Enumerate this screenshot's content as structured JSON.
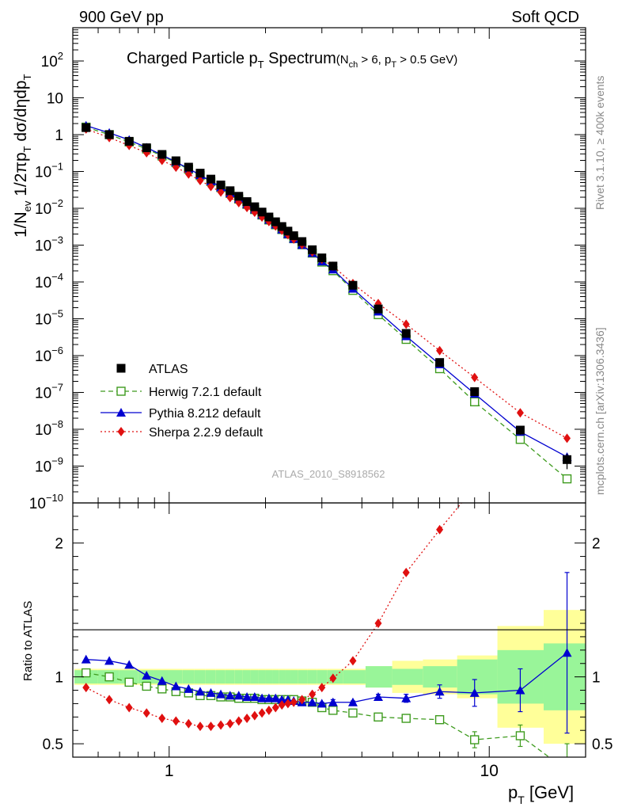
{
  "header": {
    "left": "900 GeV pp",
    "right": "Soft QCD"
  },
  "side": {
    "rivet": "Rivet 3.1.10, ≥ 400k events",
    "mcplots": "mcplots.cern.ch [arXiv:1306.3436]"
  },
  "chart_data": {
    "type": "line",
    "title": {
      "main": "Charged Particle p",
      "main_sub": "T",
      "main_tail": " Spectrum",
      "cond_a": "(N",
      "cond_a_sub": "ch",
      "cond_b": " > 6, p",
      "cond_b_sub": "T",
      "cond_c": " > 0.5 GeV)"
    },
    "analysis_tag": "ATLAS_2010_S8918562",
    "ylabel": "1/N_ev 1/2πp_T dσ/dηdp_T",
    "ylabel_parts": [
      "1/N",
      "ev",
      " 1/2πp",
      "T",
      " dσ/dηdp",
      "T"
    ],
    "ratio_ylabel": "Ratio to ATLAS",
    "xlabel": "p_T [GeV]",
    "xlabel_parts": [
      "p",
      "T",
      "  [GeV]"
    ],
    "xscale": "log",
    "xlim": [
      0.5,
      20
    ],
    "ylim": [
      1e-10,
      800
    ],
    "ratio_ylim": [
      0.4,
      2.3
    ],
    "x_ticks": [
      {
        "v": 1,
        "label": "1"
      },
      {
        "v": 10,
        "label": "10"
      }
    ],
    "y_ticks": [
      {
        "e": 2,
        "base": "10",
        "exp": "2"
      },
      {
        "e": 1,
        "base": "10",
        "exp": ""
      },
      {
        "e": 0,
        "base": "1",
        "exp": ""
      },
      {
        "e": -1,
        "base": "10",
        "exp": "−1"
      },
      {
        "e": -2,
        "base": "10",
        "exp": "−2"
      },
      {
        "e": -3,
        "base": "10",
        "exp": "−3"
      },
      {
        "e": -4,
        "base": "10",
        "exp": "−4"
      },
      {
        "e": -5,
        "base": "10",
        "exp": "−5"
      },
      {
        "e": -6,
        "base": "10",
        "exp": "−6"
      },
      {
        "e": -7,
        "base": "10",
        "exp": "−7"
      },
      {
        "e": -8,
        "base": "10",
        "exp": "−8"
      },
      {
        "e": -9,
        "base": "10",
        "exp": "−9"
      },
      {
        "e": -10,
        "base": "10",
        "exp": "−10"
      }
    ],
    "ratio_ticks": [
      {
        "v": 0.5,
        "label": "0.5"
      },
      {
        "v": 1,
        "label": "1"
      },
      {
        "v": 2,
        "label": "2"
      }
    ],
    "x": [
      0.55,
      0.65,
      0.75,
      0.85,
      0.95,
      1.05,
      1.15,
      1.25,
      1.35,
      1.45,
      1.55,
      1.65,
      1.75,
      1.85,
      1.95,
      2.05,
      2.15,
      2.25,
      2.35,
      2.45,
      2.6,
      2.8,
      3.0,
      3.25,
      3.75,
      4.5,
      5.5,
      7.0,
      9.0,
      12.5,
      17.5
    ],
    "atlas": [
      1.55,
      1.0,
      0.66,
      0.44,
      0.29,
      0.195,
      0.131,
      0.09,
      0.062,
      0.043,
      0.03,
      0.0212,
      0.0152,
      0.011,
      0.0079,
      0.0058,
      0.0043,
      0.0032,
      0.0024,
      0.0018,
      0.00125,
      0.00075,
      0.00045,
      0.00027,
      8.1e-05,
      1.85e-05,
      4e-06,
      6.5e-07,
      1.05e-07,
      9.5e-09,
      1.5e-09
    ],
    "atlas_err": [
      0,
      0,
      0,
      0,
      0,
      0,
      0,
      0,
      0,
      0,
      0,
      0,
      0,
      0,
      0,
      0,
      0,
      0,
      0,
      0,
      0,
      0,
      0,
      0,
      0,
      0,
      0,
      0,
      0,
      0.25,
      0.45
    ],
    "band_inner": [
      0.05,
      0.05,
      0.05,
      0.05,
      0.05,
      0.05,
      0.05,
      0.05,
      0.05,
      0.05,
      0.05,
      0.05,
      0.05,
      0.05,
      0.05,
      0.05,
      0.05,
      0.05,
      0.05,
      0.05,
      0.05,
      0.05,
      0.05,
      0.05,
      0.05,
      0.08,
      0.06,
      0.08,
      0.13,
      0.2,
      0.25
    ],
    "band_outer": [
      0.06,
      0.06,
      0.06,
      0.06,
      0.06,
      0.06,
      0.06,
      0.06,
      0.06,
      0.06,
      0.06,
      0.06,
      0.06,
      0.06,
      0.06,
      0.06,
      0.06,
      0.06,
      0.06,
      0.06,
      0.06,
      0.06,
      0.06,
      0.06,
      0.06,
      0.08,
      0.12,
      0.13,
      0.16,
      0.38,
      0.5
    ],
    "series": [
      {
        "name": "Herwig 7.2.1 default",
        "color": "#3e9b1e",
        "marker": "open-square",
        "dash": "6,4",
        "ratio": [
          1.03,
          1.0,
          0.96,
          0.93,
          0.91,
          0.89,
          0.88,
          0.86,
          0.86,
          0.85,
          0.85,
          0.84,
          0.84,
          0.84,
          0.83,
          0.83,
          0.83,
          0.83,
          0.83,
          0.83,
          0.82,
          0.81,
          0.77,
          0.75,
          0.73,
          0.7,
          0.69,
          0.68,
          0.53,
          0.56,
          0.3
        ],
        "err": [
          0,
          0,
          0,
          0,
          0,
          0,
          0,
          0,
          0,
          0,
          0,
          0,
          0,
          0,
          0,
          0,
          0,
          0,
          0,
          0,
          0,
          0,
          0,
          0,
          0,
          0,
          0,
          0.02,
          0.06,
          0.08,
          0.2
        ]
      },
      {
        "name": "Pythia 8.212 default",
        "color": "#0000d0",
        "marker": "triangle",
        "dash": "",
        "ratio": [
          1.13,
          1.12,
          1.09,
          1.01,
          0.97,
          0.93,
          0.91,
          0.89,
          0.88,
          0.87,
          0.86,
          0.86,
          0.85,
          0.85,
          0.84,
          0.84,
          0.84,
          0.83,
          0.83,
          0.82,
          0.81,
          0.81,
          0.8,
          0.81,
          0.81,
          0.85,
          0.84,
          0.89,
          0.88,
          0.9,
          1.18
        ],
        "err": [
          0,
          0,
          0,
          0,
          0,
          0,
          0,
          0,
          0,
          0,
          0,
          0,
          0,
          0,
          0,
          0,
          0,
          0,
          0,
          0,
          0,
          0,
          0.01,
          0.02,
          0.01,
          0.02,
          0.03,
          0.05,
          0.1,
          0.16,
          0.6
        ]
      },
      {
        "name": "Sherpa 2.2.9 default",
        "color": "#e01010",
        "marker": "diamond",
        "dash": "2,3",
        "ratio": [
          0.92,
          0.83,
          0.77,
          0.73,
          0.69,
          0.67,
          0.65,
          0.63,
          0.63,
          0.64,
          0.65,
          0.67,
          0.69,
          0.71,
          0.73,
          0.75,
          0.77,
          0.79,
          0.8,
          0.81,
          0.83,
          0.87,
          0.92,
          0.99,
          1.12,
          1.4,
          1.78,
          2.1,
          2.42,
          2.95,
          3.8
        ],
        "err": [
          0,
          0,
          0,
          0,
          0,
          0,
          0,
          0,
          0,
          0,
          0,
          0,
          0,
          0,
          0,
          0,
          0,
          0,
          0,
          0,
          0,
          0,
          0,
          0,
          0,
          0,
          0,
          0,
          0,
          0,
          0
        ]
      }
    ],
    "legend": {
      "placement": "lower-left",
      "entries": [
        "ATLAS",
        "Herwig 7.2.1 default",
        "Pythia 8.212 default",
        "Sherpa 2.2.9 default"
      ]
    },
    "grid": false
  }
}
